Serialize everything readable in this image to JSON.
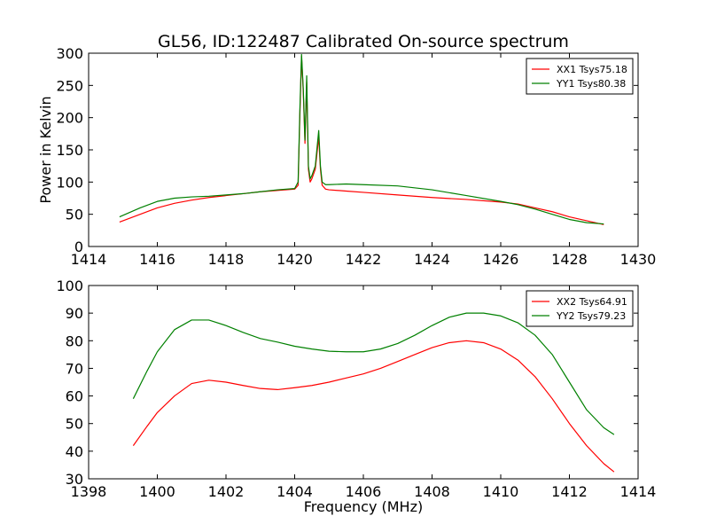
{
  "chart_data": [
    {
      "type": "line",
      "title": "GL56, ID:122487 Calibrated On-source spectrum",
      "xlabel": "",
      "ylabel": "Power in Kelvin",
      "xlim": [
        1414,
        1430
      ],
      "ylim": [
        0,
        300
      ],
      "xticks": [
        "1414",
        "1416",
        "1418",
        "1420",
        "1422",
        "1424",
        "1426",
        "1428",
        "1430"
      ],
      "yticks": [
        "0",
        "50",
        "100",
        "150",
        "200",
        "250",
        "300"
      ],
      "legend_position": "top-right",
      "series": [
        {
          "name": "XX1 Tsys75.18",
          "color": "#ff0000",
          "x": [
            1414.9,
            1415.5,
            1416.0,
            1416.5,
            1417.0,
            1417.5,
            1418.0,
            1418.5,
            1419.0,
            1419.5,
            1420.0,
            1420.1,
            1420.15,
            1420.2,
            1420.25,
            1420.3,
            1420.35,
            1420.4,
            1420.45,
            1420.5,
            1420.6,
            1420.7,
            1420.75,
            1420.8,
            1420.9,
            1421.0,
            1421.5,
            1422.0,
            1423.0,
            1424.0,
            1425.0,
            1426.0,
            1426.5,
            1427.0,
            1427.5,
            1428.0,
            1428.5,
            1429.0
          ],
          "y": [
            38,
            50,
            60,
            67,
            72,
            76,
            79,
            82,
            85,
            87,
            89,
            95,
            200,
            295,
            240,
            160,
            255,
            120,
            100,
            105,
            120,
            170,
            120,
            95,
            89,
            88,
            86,
            84,
            80,
            76,
            73,
            69,
            66,
            60,
            54,
            46,
            40,
            34
          ]
        },
        {
          "name": "YY1 Tsys80.38",
          "color": "#008000",
          "x": [
            1414.9,
            1415.5,
            1416.0,
            1416.5,
            1417.0,
            1417.5,
            1418.0,
            1418.5,
            1419.0,
            1419.5,
            1420.0,
            1420.1,
            1420.15,
            1420.2,
            1420.25,
            1420.3,
            1420.35,
            1420.4,
            1420.45,
            1420.5,
            1420.6,
            1420.7,
            1420.75,
            1420.8,
            1420.9,
            1421.0,
            1421.5,
            1422.0,
            1423.0,
            1424.0,
            1425.0,
            1426.0,
            1426.5,
            1427.0,
            1427.5,
            1428.0,
            1428.5,
            1429.0
          ],
          "y": [
            46,
            60,
            70,
            75,
            77,
            78,
            80,
            82,
            85,
            88,
            90,
            100,
            210,
            298,
            245,
            165,
            265,
            125,
            105,
            110,
            125,
            180,
            125,
            100,
            96,
            96,
            97,
            96,
            94,
            88,
            79,
            70,
            65,
            58,
            50,
            42,
            37,
            35
          ]
        }
      ]
    },
    {
      "type": "line",
      "title": "",
      "xlabel": "Frequency (MHz)",
      "ylabel": "",
      "xlim": [
        1398,
        1414
      ],
      "ylim": [
        30,
        100
      ],
      "xticks": [
        "1398",
        "1400",
        "1402",
        "1404",
        "1406",
        "1408",
        "1410",
        "1412",
        "1414"
      ],
      "yticks": [
        "30",
        "40",
        "50",
        "60",
        "70",
        "80",
        "90",
        "100"
      ],
      "legend_position": "top-right",
      "series": [
        {
          "name": "XX2 Tsys64.91",
          "color": "#ff0000",
          "x": [
            1399.3,
            1399.7,
            1400.0,
            1400.5,
            1401.0,
            1401.5,
            1402.0,
            1402.5,
            1403.0,
            1403.5,
            1404.0,
            1404.5,
            1405.0,
            1405.5,
            1406.0,
            1406.5,
            1407.0,
            1407.5,
            1408.0,
            1408.5,
            1409.0,
            1409.5,
            1410.0,
            1410.5,
            1411.0,
            1411.5,
            1412.0,
            1412.5,
            1413.0,
            1413.3
          ],
          "y": [
            42,
            49,
            54,
            60,
            64.5,
            65.7,
            65,
            63.8,
            62.7,
            62.3,
            63,
            63.8,
            65,
            66.5,
            68,
            70,
            72.5,
            75,
            77.5,
            79.3,
            80,
            79.3,
            77,
            73,
            67,
            59,
            50,
            42,
            35.5,
            32.5
          ]
        },
        {
          "name": "YY2 Tsys79.23",
          "color": "#008000",
          "x": [
            1399.3,
            1399.7,
            1400.0,
            1400.5,
            1401.0,
            1401.5,
            1402.0,
            1402.5,
            1403.0,
            1403.5,
            1404.0,
            1404.5,
            1405.0,
            1405.5,
            1406.0,
            1406.5,
            1407.0,
            1407.5,
            1408.0,
            1408.5,
            1409.0,
            1409.5,
            1410.0,
            1410.5,
            1411.0,
            1411.5,
            1412.0,
            1412.5,
            1413.0,
            1413.3
          ],
          "y": [
            59,
            69,
            76,
            84,
            87.5,
            87.5,
            85.5,
            83,
            80.8,
            79.5,
            78,
            77,
            76.2,
            76,
            76,
            77,
            79,
            82,
            85.5,
            88.5,
            90,
            90,
            89,
            86.5,
            82,
            75,
            65,
            55,
            48.5,
            46
          ]
        }
      ]
    }
  ]
}
